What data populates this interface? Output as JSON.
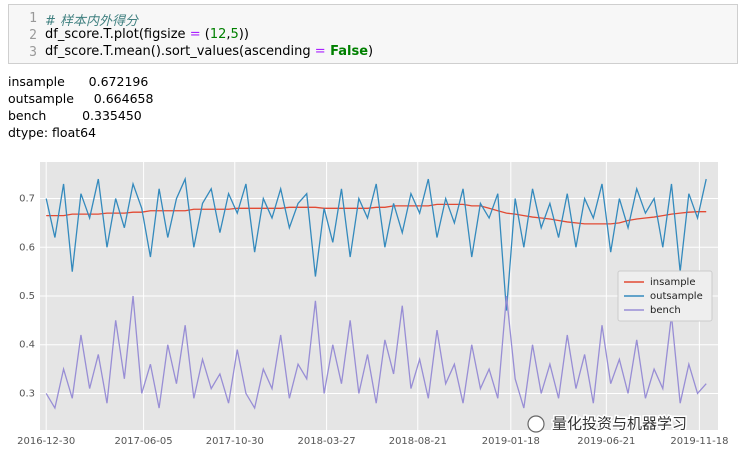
{
  "code_cell": {
    "line_numbers": [
      "1",
      "2",
      "3"
    ],
    "lines": [
      [
        "# 样本内外得分"
      ],
      [
        "df_score.T.plot(figsize ",
        "=",
        " (",
        "12",
        ",",
        "5",
        "))"
      ],
      [
        "df_score.T.mean().sort_values(ascending ",
        "=",
        " False",
        ")"
      ]
    ]
  },
  "output": [
    "insample      0.672196",
    "outsample     0.664658",
    "bench         0.335450",
    "dtype: float64"
  ],
  "watermark": "量化投资与机器学习",
  "chart_data": {
    "type": "line",
    "legend": "right",
    "grid": true,
    "xlim": [
      "2016-12-20",
      "2019-12-18"
    ],
    "xticks": [
      "2016-12-30",
      "2017-06-05",
      "2017-10-30",
      "2018-03-27",
      "2018-08-21",
      "2019-01-18",
      "2019-06-21",
      "2019-11-18"
    ],
    "ylim": [
      0.225,
      0.775
    ],
    "yticks": [
      0.3,
      0.4,
      0.5,
      0.6,
      0.7
    ],
    "x": [
      "2016-12-30",
      "2017-01-13",
      "2017-01-27",
      "2017-02-10",
      "2017-02-24",
      "2017-03-10",
      "2017-03-24",
      "2017-04-07",
      "2017-04-21",
      "2017-05-05",
      "2017-05-19",
      "2017-06-02",
      "2017-06-16",
      "2017-06-30",
      "2017-07-14",
      "2017-07-28",
      "2017-08-11",
      "2017-08-25",
      "2017-09-08",
      "2017-09-22",
      "2017-10-06",
      "2017-10-20",
      "2017-11-03",
      "2017-11-17",
      "2017-12-01",
      "2017-12-15",
      "2017-12-29",
      "2018-01-12",
      "2018-01-26",
      "2018-02-09",
      "2018-02-23",
      "2018-03-09",
      "2018-03-23",
      "2018-04-06",
      "2018-04-20",
      "2018-05-04",
      "2018-05-18",
      "2018-06-01",
      "2018-06-15",
      "2018-06-29",
      "2018-07-13",
      "2018-07-27",
      "2018-08-10",
      "2018-08-24",
      "2018-09-07",
      "2018-09-21",
      "2018-10-05",
      "2018-10-19",
      "2018-11-02",
      "2018-11-16",
      "2018-11-30",
      "2018-12-14",
      "2018-12-28",
      "2019-01-11",
      "2019-01-25",
      "2019-02-08",
      "2019-02-22",
      "2019-03-08",
      "2019-03-22",
      "2019-04-05",
      "2019-04-19",
      "2019-05-03",
      "2019-05-17",
      "2019-05-31",
      "2019-06-14",
      "2019-06-28",
      "2019-07-12",
      "2019-07-26",
      "2019-08-09",
      "2019-08-23",
      "2019-09-06",
      "2019-09-20",
      "2019-10-04",
      "2019-10-18",
      "2019-11-01",
      "2019-11-15",
      "2019-11-29"
    ],
    "series": [
      {
        "name": "insample",
        "color": "#e24a33",
        "values": [
          0.665,
          0.665,
          0.665,
          0.668,
          0.668,
          0.668,
          0.668,
          0.67,
          0.67,
          0.67,
          0.672,
          0.672,
          0.675,
          0.675,
          0.675,
          0.675,
          0.675,
          0.678,
          0.678,
          0.678,
          0.678,
          0.678,
          0.68,
          0.68,
          0.68,
          0.68,
          0.68,
          0.68,
          0.682,
          0.682,
          0.682,
          0.682,
          0.68,
          0.68,
          0.68,
          0.68,
          0.68,
          0.68,
          0.682,
          0.682,
          0.685,
          0.685,
          0.685,
          0.685,
          0.685,
          0.688,
          0.688,
          0.688,
          0.688,
          0.685,
          0.685,
          0.68,
          0.675,
          0.67,
          0.668,
          0.665,
          0.662,
          0.66,
          0.658,
          0.655,
          0.652,
          0.65,
          0.648,
          0.648,
          0.648,
          0.648,
          0.65,
          0.655,
          0.658,
          0.66,
          0.662,
          0.665,
          0.668,
          0.67,
          0.672,
          0.673,
          0.673
        ]
      },
      {
        "name": "outsample",
        "color": "#348abd",
        "values": [
          0.7,
          0.62,
          0.73,
          0.55,
          0.71,
          0.66,
          0.74,
          0.6,
          0.7,
          0.64,
          0.73,
          0.68,
          0.58,
          0.72,
          0.62,
          0.7,
          0.74,
          0.6,
          0.69,
          0.72,
          0.63,
          0.71,
          0.67,
          0.73,
          0.59,
          0.7,
          0.66,
          0.72,
          0.64,
          0.69,
          0.71,
          0.54,
          0.68,
          0.61,
          0.72,
          0.58,
          0.7,
          0.66,
          0.73,
          0.6,
          0.69,
          0.63,
          0.71,
          0.67,
          0.74,
          0.62,
          0.7,
          0.65,
          0.72,
          0.58,
          0.69,
          0.66,
          0.71,
          0.47,
          0.7,
          0.6,
          0.72,
          0.64,
          0.69,
          0.62,
          0.71,
          0.6,
          0.7,
          0.66,
          0.73,
          0.59,
          0.7,
          0.64,
          0.72,
          0.67,
          0.7,
          0.6,
          0.73,
          0.55,
          0.71,
          0.66,
          0.74
        ]
      },
      {
        "name": "bench",
        "color": "#988ed5",
        "values": [
          0.3,
          0.27,
          0.35,
          0.29,
          0.42,
          0.31,
          0.38,
          0.28,
          0.45,
          0.33,
          0.5,
          0.3,
          0.36,
          0.27,
          0.4,
          0.32,
          0.44,
          0.29,
          0.37,
          0.31,
          0.34,
          0.28,
          0.39,
          0.3,
          0.27,
          0.35,
          0.31,
          0.42,
          0.29,
          0.36,
          0.33,
          0.49,
          0.3,
          0.4,
          0.32,
          0.45,
          0.3,
          0.38,
          0.28,
          0.41,
          0.34,
          0.48,
          0.31,
          0.37,
          0.29,
          0.43,
          0.32,
          0.36,
          0.28,
          0.4,
          0.31,
          0.35,
          0.29,
          0.5,
          0.33,
          0.27,
          0.4,
          0.3,
          0.36,
          0.29,
          0.42,
          0.31,
          0.38,
          0.28,
          0.44,
          0.32,
          0.37,
          0.3,
          0.41,
          0.29,
          0.35,
          0.31,
          0.46,
          0.28,
          0.36,
          0.3,
          0.32
        ]
      }
    ]
  }
}
